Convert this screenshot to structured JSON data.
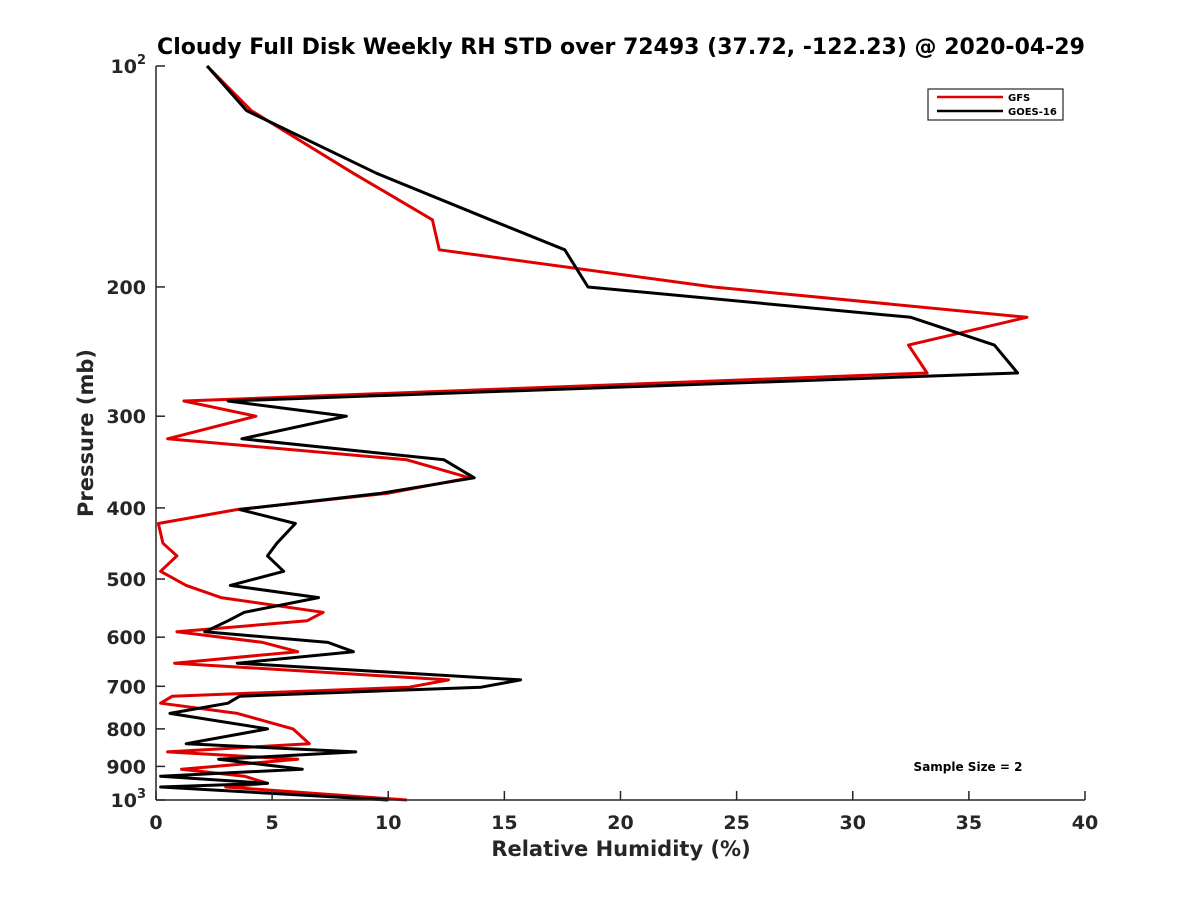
{
  "chart_data": {
    "type": "line",
    "title": "Cloudy Full Disk Weekly RH STD over 72493 (37.72, -122.23) @ 2020-04-29",
    "xlabel": "Relative Humidity (%)",
    "ylabel": "Pressure (mb)",
    "xlim": [
      0,
      40
    ],
    "ylim": [
      100,
      1000
    ],
    "y_scale": "log",
    "y_reversed": true,
    "grid": false,
    "legend_position": "top-right",
    "annotation": "Sample Size = 2",
    "x_ticks": [
      0,
      5,
      10,
      15,
      20,
      25,
      30,
      35,
      40
    ],
    "y_ticks": [
      {
        "value": 100,
        "base": "10",
        "exp": "2"
      },
      {
        "value": 200,
        "label": "200"
      },
      {
        "value": 300,
        "label": "300"
      },
      {
        "value": 400,
        "label": "400"
      },
      {
        "value": 500,
        "label": "500"
      },
      {
        "value": 600,
        "label": "600"
      },
      {
        "value": 700,
        "label": "700"
      },
      {
        "value": 800,
        "label": "800"
      },
      {
        "value": 900,
        "label": "900"
      },
      {
        "value": 1000,
        "base": "10",
        "exp": "3"
      }
    ],
    "series": [
      {
        "name": "GFS",
        "color": "#e00000",
        "points": [
          [
            2.2,
            100
          ],
          [
            4.1,
            115
          ],
          [
            8.5,
            140
          ],
          [
            11.9,
            162
          ],
          [
            12.2,
            178
          ],
          [
            24.0,
            200
          ],
          [
            37.5,
            220
          ],
          [
            32.4,
            240
          ],
          [
            33.2,
            262
          ],
          [
            1.2,
            286
          ],
          [
            4.3,
            300
          ],
          [
            0.5,
            322
          ],
          [
            10.8,
            344
          ],
          [
            13.5,
            364
          ],
          [
            10.0,
            382
          ],
          [
            3.5,
            402
          ],
          [
            0.1,
            420
          ],
          [
            0.3,
            447
          ],
          [
            0.9,
            465
          ],
          [
            0.2,
            488
          ],
          [
            1.3,
            510
          ],
          [
            2.8,
            530
          ],
          [
            7.2,
            555
          ],
          [
            6.5,
            570
          ],
          [
            0.9,
            590
          ],
          [
            4.6,
            610
          ],
          [
            6.1,
            628
          ],
          [
            0.8,
            651
          ],
          [
            12.6,
            686
          ],
          [
            10.9,
            702
          ],
          [
            0.7,
            722
          ],
          [
            0.2,
            738
          ],
          [
            3.5,
            762
          ],
          [
            5.9,
            800
          ],
          [
            6.6,
            838
          ],
          [
            0.5,
            860
          ],
          [
            6.1,
            880
          ],
          [
            1.1,
            908
          ],
          [
            3.8,
            928
          ],
          [
            4.8,
            949
          ],
          [
            3.0,
            960
          ],
          [
            10.8,
            1000
          ]
        ]
      },
      {
        "name": "GOES-16",
        "color": "#000000",
        "points": [
          [
            2.2,
            100
          ],
          [
            3.9,
            115
          ],
          [
            9.5,
            140
          ],
          [
            14.4,
            162
          ],
          [
            17.6,
            178
          ],
          [
            18.6,
            200
          ],
          [
            32.5,
            220
          ],
          [
            36.1,
            240
          ],
          [
            37.1,
            262
          ],
          [
            3.1,
            286
          ],
          [
            8.2,
            300
          ],
          [
            3.7,
            322
          ],
          [
            12.4,
            344
          ],
          [
            13.7,
            364
          ],
          [
            9.7,
            382
          ],
          [
            3.6,
            402
          ],
          [
            6.0,
            420
          ],
          [
            5.2,
            447
          ],
          [
            4.8,
            465
          ],
          [
            5.5,
            488
          ],
          [
            3.2,
            510
          ],
          [
            7.0,
            530
          ],
          [
            3.8,
            555
          ],
          [
            3.1,
            570
          ],
          [
            2.1,
            590
          ],
          [
            7.4,
            610
          ],
          [
            8.5,
            628
          ],
          [
            3.5,
            651
          ],
          [
            15.7,
            686
          ],
          [
            14.0,
            702
          ],
          [
            3.6,
            722
          ],
          [
            3.1,
            738
          ],
          [
            0.6,
            762
          ],
          [
            4.8,
            800
          ],
          [
            1.3,
            838
          ],
          [
            8.6,
            860
          ],
          [
            2.7,
            880
          ],
          [
            6.3,
            908
          ],
          [
            0.2,
            928
          ],
          [
            4.8,
            949
          ],
          [
            0.2,
            960
          ],
          [
            10.0,
            1000
          ]
        ]
      }
    ]
  }
}
